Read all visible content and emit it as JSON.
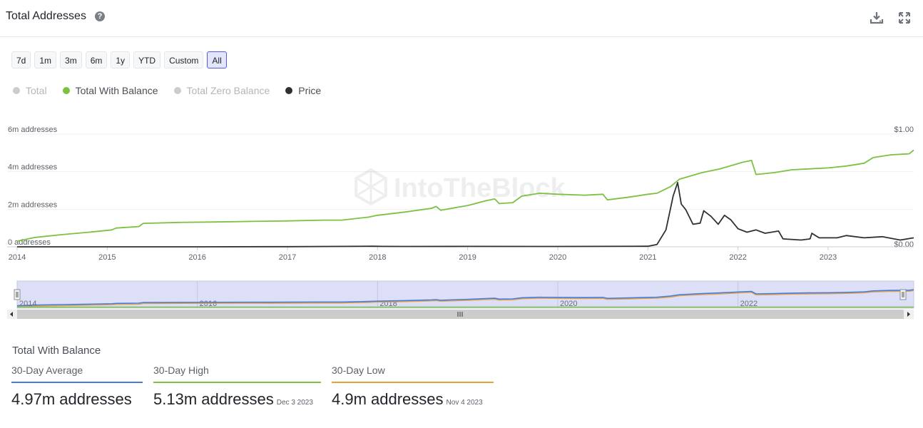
{
  "header": {
    "title": "Total Addresses",
    "help_icon": "question-icon",
    "download_icon": "download-icon",
    "fullscreen_icon": "expand-icon"
  },
  "range_buttons": [
    {
      "label": "7d",
      "active": false
    },
    {
      "label": "1m",
      "active": false
    },
    {
      "label": "3m",
      "active": false
    },
    {
      "label": "6m",
      "active": false
    },
    {
      "label": "1y",
      "active": false
    },
    {
      "label": "YTD",
      "active": false
    },
    {
      "label": "Custom",
      "active": false
    },
    {
      "label": "All",
      "active": true
    }
  ],
  "legend": [
    {
      "label": "Total",
      "color": "#cccccc",
      "enabled": false
    },
    {
      "label": "Total With Balance",
      "color": "#7bc142",
      "enabled": true
    },
    {
      "label": "Total Zero Balance",
      "color": "#cccccc",
      "enabled": false
    },
    {
      "label": "Price",
      "color": "#2f3035",
      "enabled": true
    }
  ],
  "watermark": "IntoTheBlock",
  "chart_data": {
    "type": "line",
    "left_axis_ticks": [
      "0 addresses",
      "2m addresses",
      "4m addresses",
      "6m addresses"
    ],
    "right_axis_ticks": [
      "$0.00",
      "$1.00"
    ],
    "x_ticks": [
      "2014",
      "2015",
      "2016",
      "2017",
      "2018",
      "2019",
      "2020",
      "2021",
      "2022",
      "2023"
    ],
    "y_range_addresses_m": [
      0,
      6
    ],
    "y_range_price": [
      0,
      1
    ],
    "x_range": [
      2014.0,
      2023.95
    ],
    "grid": true,
    "series": [
      {
        "name": "Total With Balance",
        "axis": "left",
        "color": "#7bc142",
        "points": [
          [
            2014.0,
            0.3
          ],
          [
            2014.2,
            0.5
          ],
          [
            2014.5,
            0.65
          ],
          [
            2014.8,
            0.78
          ],
          [
            2015.05,
            0.9
          ],
          [
            2015.1,
            1.0
          ],
          [
            2015.35,
            1.08
          ],
          [
            2015.4,
            1.25
          ],
          [
            2015.8,
            1.3
          ],
          [
            2016.2,
            1.32
          ],
          [
            2016.6,
            1.35
          ],
          [
            2017.0,
            1.38
          ],
          [
            2017.4,
            1.42
          ],
          [
            2017.6,
            1.42
          ],
          [
            2017.9,
            1.58
          ],
          [
            2018.0,
            1.68
          ],
          [
            2018.3,
            1.85
          ],
          [
            2018.6,
            2.05
          ],
          [
            2018.65,
            2.15
          ],
          [
            2018.7,
            1.95
          ],
          [
            2019.0,
            2.2
          ],
          [
            2019.2,
            2.45
          ],
          [
            2019.3,
            2.55
          ],
          [
            2019.35,
            2.3
          ],
          [
            2019.5,
            2.35
          ],
          [
            2019.6,
            2.7
          ],
          [
            2019.8,
            2.85
          ],
          [
            2020.0,
            2.8
          ],
          [
            2020.3,
            2.75
          ],
          [
            2020.5,
            2.8
          ],
          [
            2020.55,
            2.5
          ],
          [
            2020.8,
            2.65
          ],
          [
            2021.0,
            2.8
          ],
          [
            2021.1,
            2.85
          ],
          [
            2021.25,
            3.2
          ],
          [
            2021.35,
            3.6
          ],
          [
            2021.6,
            3.95
          ],
          [
            2021.8,
            4.15
          ],
          [
            2022.05,
            4.5
          ],
          [
            2022.15,
            4.6
          ],
          [
            2022.2,
            3.85
          ],
          [
            2022.4,
            3.95
          ],
          [
            2022.6,
            4.1
          ],
          [
            2022.8,
            4.15
          ],
          [
            2023.0,
            4.2
          ],
          [
            2023.2,
            4.3
          ],
          [
            2023.4,
            4.45
          ],
          [
            2023.5,
            4.75
          ],
          [
            2023.7,
            4.9
          ],
          [
            2023.9,
            4.95
          ],
          [
            2023.95,
            5.15
          ]
        ]
      },
      {
        "name": "Price",
        "axis": "right",
        "color": "#2f3035",
        "points": [
          [
            2014.0,
            0.0
          ],
          [
            2016.0,
            0.0
          ],
          [
            2017.0,
            0.001
          ],
          [
            2017.95,
            0.005
          ],
          [
            2018.05,
            0.004
          ],
          [
            2018.3,
            0.003
          ],
          [
            2019.0,
            0.004
          ],
          [
            2020.0,
            0.003
          ],
          [
            2021.0,
            0.005
          ],
          [
            2021.1,
            0.02
          ],
          [
            2021.2,
            0.15
          ],
          [
            2021.28,
            0.45
          ],
          [
            2021.33,
            0.57
          ],
          [
            2021.37,
            0.38
          ],
          [
            2021.42,
            0.33
          ],
          [
            2021.5,
            0.2
          ],
          [
            2021.58,
            0.21
          ],
          [
            2021.62,
            0.32
          ],
          [
            2021.7,
            0.27
          ],
          [
            2021.78,
            0.2
          ],
          [
            2021.85,
            0.28
          ],
          [
            2021.92,
            0.24
          ],
          [
            2022.0,
            0.16
          ],
          [
            2022.1,
            0.13
          ],
          [
            2022.2,
            0.15
          ],
          [
            2022.3,
            0.12
          ],
          [
            2022.45,
            0.14
          ],
          [
            2022.5,
            0.07
          ],
          [
            2022.7,
            0.06
          ],
          [
            2022.8,
            0.07
          ],
          [
            2022.82,
            0.12
          ],
          [
            2022.9,
            0.08
          ],
          [
            2023.1,
            0.08
          ],
          [
            2023.2,
            0.1
          ],
          [
            2023.4,
            0.08
          ],
          [
            2023.6,
            0.09
          ],
          [
            2023.8,
            0.06
          ],
          [
            2023.95,
            0.08
          ]
        ]
      }
    ]
  },
  "navigator": {
    "x_ticks": [
      "2014",
      "2016",
      "2018",
      "2020",
      "2022"
    ],
    "scrollbar_icon": "grip-icon",
    "left_arrow_icon": "arrow-left-icon",
    "right_arrow_icon": "arrow-right-icon"
  },
  "stats": {
    "title": "Total With Balance",
    "items": [
      {
        "label": "30-Day Average",
        "value": "4.97m addresses",
        "date": "",
        "color": "#4a7ad8"
      },
      {
        "label": "30-Day High",
        "value": "5.13m addresses",
        "date": "Dec 3 2023",
        "color": "#7bc142"
      },
      {
        "label": "30-Day Low",
        "value": "4.9m addresses",
        "date": "Nov 4 2023",
        "color": "#e8a23a"
      }
    ]
  }
}
